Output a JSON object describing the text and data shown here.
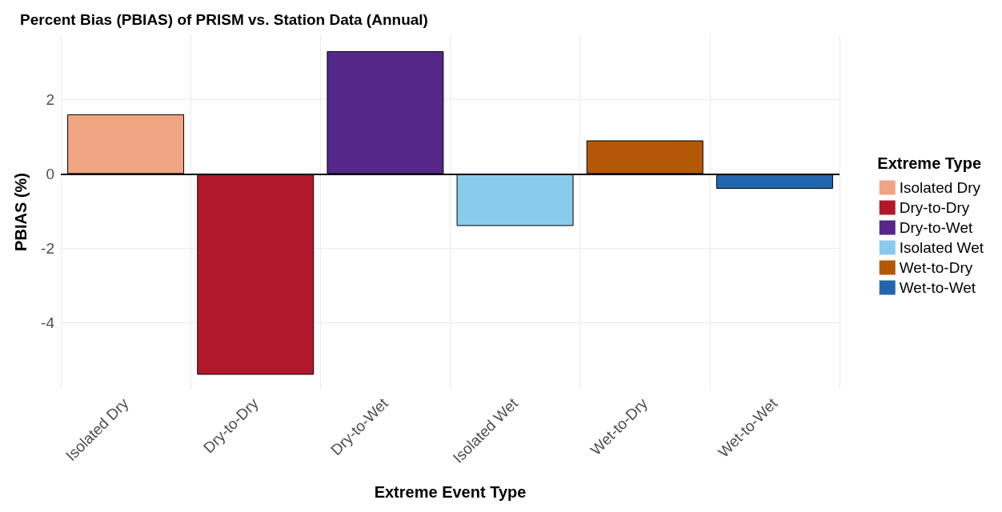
{
  "chart_data": {
    "type": "bar",
    "title": "Percent Bias (PBIAS) of PRISM vs. Station Data (Annual)",
    "xlabel": "Extreme Event Type",
    "ylabel": "PBIAS (%)",
    "legend_title": "Extreme Type",
    "categories": [
      "Isolated Dry",
      "Dry-to-Dry",
      "Dry-to-Wet",
      "Isolated Wet",
      "Wet-to-Dry",
      "Wet-to-Wet"
    ],
    "series": [
      {
        "name": "Isolated Dry",
        "color": "#f0a582",
        "values": [
          1.6,
          null,
          null,
          null,
          null,
          null
        ]
      },
      {
        "name": "Dry-to-Dry",
        "color": "#b2182b",
        "values": [
          null,
          -5.4,
          null,
          null,
          null,
          null
        ]
      },
      {
        "name": "Dry-to-Wet",
        "color": "#542788",
        "values": [
          null,
          null,
          3.3,
          null,
          null,
          null
        ]
      },
      {
        "name": "Isolated Wet",
        "color": "#89cbeb",
        "values": [
          null,
          null,
          null,
          -1.4,
          null,
          null
        ]
      },
      {
        "name": "Wet-to-Dry",
        "color": "#b35806",
        "values": [
          null,
          null,
          null,
          null,
          0.9,
          null
        ]
      },
      {
        "name": "Wet-to-Wet",
        "color": "#2166ac",
        "values": [
          null,
          null,
          null,
          null,
          null,
          -0.4
        ]
      }
    ],
    "ylim": [
      -5.8,
      3.75
    ],
    "yticks": [
      -4,
      -2,
      0,
      2
    ],
    "grid": true,
    "legend": "right",
    "ref_lines": [
      {
        "axis": "y",
        "value": 0,
        "color": "#000000"
      }
    ]
  }
}
